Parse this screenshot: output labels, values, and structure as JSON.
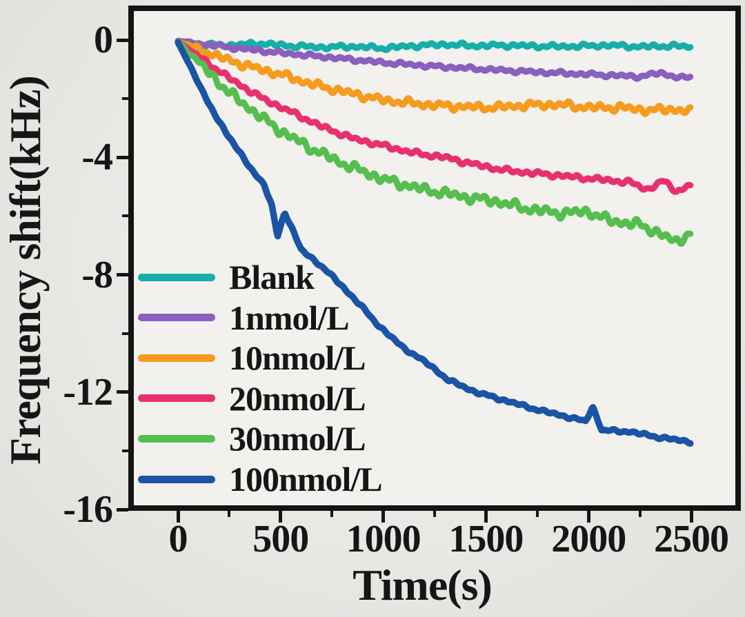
{
  "figure": {
    "background": "#e9e8e5",
    "plot_background": "#f2f1ee",
    "frame_color": "#141414",
    "text_color": "#161616"
  },
  "x_axis": {
    "title": "Time(s)",
    "major_ticks": [
      0,
      500,
      1000,
      1500,
      2000,
      2500
    ],
    "minor_ticks": [
      250,
      750,
      1250,
      1750,
      2250
    ],
    "range": [
      0,
      2500
    ]
  },
  "y_axis": {
    "title": "Frequency shift(kHz)",
    "major_ticks": [
      0,
      -4,
      -8,
      -12,
      -16
    ],
    "minor_ticks": [
      -2,
      -6,
      -10,
      -14
    ],
    "range": [
      -16,
      0
    ]
  },
  "chart_data": {
    "type": "line",
    "title": "",
    "xlabel": "Time(s)",
    "ylabel": "Frequency shift(kHz)",
    "xlim": [
      0,
      2500
    ],
    "ylim": [
      -16,
      0
    ],
    "grid": false,
    "legend_position": "lower-left-inside",
    "x_units": "seconds",
    "y_units": "kHz",
    "series": [
      {
        "name": "Blank",
        "color": "#17AEA9",
        "noise_amp": 0.09,
        "points": [
          [
            0,
            -0.03
          ],
          [
            100,
            -0.15
          ],
          [
            250,
            -0.18
          ],
          [
            400,
            -0.12
          ],
          [
            550,
            -0.2
          ],
          [
            700,
            -0.25
          ],
          [
            850,
            -0.22
          ],
          [
            1000,
            -0.28
          ],
          [
            1150,
            -0.2
          ],
          [
            1300,
            -0.15
          ],
          [
            1450,
            -0.2
          ],
          [
            1600,
            -0.18
          ],
          [
            1750,
            -0.21
          ],
          [
            1900,
            -0.22
          ],
          [
            2100,
            -0.18
          ],
          [
            2250,
            -0.23
          ],
          [
            2400,
            -0.2
          ],
          [
            2500,
            -0.23
          ]
        ]
      },
      {
        "name": "1nmol/L",
        "color": "#8A5FBE",
        "noise_amp": 0.08,
        "points": [
          [
            0,
            -0.03
          ],
          [
            100,
            -0.12
          ],
          [
            250,
            -0.25
          ],
          [
            500,
            -0.44
          ],
          [
            750,
            -0.6
          ],
          [
            1000,
            -0.77
          ],
          [
            1250,
            -0.9
          ],
          [
            1500,
            -1.0
          ],
          [
            1700,
            -1.08
          ],
          [
            1900,
            -1.14
          ],
          [
            2100,
            -1.2
          ],
          [
            2250,
            -1.25
          ],
          [
            2350,
            -1.12
          ],
          [
            2450,
            -1.3
          ],
          [
            2500,
            -1.26
          ]
        ]
      },
      {
        "name": "10nmol/L",
        "color": "#F59B1E",
        "noise_amp": 0.16,
        "points": [
          [
            0,
            -0.05
          ],
          [
            100,
            -0.3
          ],
          [
            250,
            -0.7
          ],
          [
            400,
            -1.0
          ],
          [
            500,
            -1.17
          ],
          [
            650,
            -1.5
          ],
          [
            800,
            -1.75
          ],
          [
            1000,
            -2.05
          ],
          [
            1200,
            -2.2
          ],
          [
            1400,
            -2.28
          ],
          [
            1550,
            -2.3
          ],
          [
            1700,
            -2.22
          ],
          [
            1850,
            -2.2
          ],
          [
            2000,
            -2.3
          ],
          [
            2150,
            -2.3
          ],
          [
            2300,
            -2.4
          ],
          [
            2400,
            -2.35
          ],
          [
            2500,
            -2.45
          ]
        ]
      },
      {
        "name": "20nmol/L",
        "color": "#E7316F",
        "noise_amp": 0.1,
        "points": [
          [
            0,
            -0.05
          ],
          [
            100,
            -0.55
          ],
          [
            250,
            -1.3
          ],
          [
            400,
            -1.95
          ],
          [
            550,
            -2.45
          ],
          [
            700,
            -2.95
          ],
          [
            850,
            -3.35
          ],
          [
            1000,
            -3.6
          ],
          [
            1150,
            -3.85
          ],
          [
            1300,
            -4.0
          ],
          [
            1450,
            -4.25
          ],
          [
            1600,
            -4.45
          ],
          [
            1750,
            -4.55
          ],
          [
            1900,
            -4.65
          ],
          [
            2050,
            -4.75
          ],
          [
            2200,
            -4.85
          ],
          [
            2290,
            -5.1
          ],
          [
            2360,
            -4.8
          ],
          [
            2430,
            -5.15
          ],
          [
            2500,
            -4.95
          ]
        ]
      },
      {
        "name": "30nmol/L",
        "color": "#55BE4F",
        "noise_amp": 0.2,
        "points": [
          [
            0,
            -0.06
          ],
          [
            100,
            -0.75
          ],
          [
            250,
            -1.8
          ],
          [
            400,
            -2.6
          ],
          [
            500,
            -3.1
          ],
          [
            650,
            -3.7
          ],
          [
            800,
            -4.2
          ],
          [
            1000,
            -4.75
          ],
          [
            1200,
            -5.1
          ],
          [
            1400,
            -5.35
          ],
          [
            1550,
            -5.5
          ],
          [
            1700,
            -5.75
          ],
          [
            1850,
            -5.9
          ],
          [
            2000,
            -5.85
          ],
          [
            2100,
            -6.15
          ],
          [
            2250,
            -6.3
          ],
          [
            2350,
            -6.6
          ],
          [
            2420,
            -6.9
          ],
          [
            2500,
            -6.55
          ]
        ]
      },
      {
        "name": "100nmol/L",
        "color": "#1B53A5",
        "noise_amp": 0.06,
        "points": [
          [
            0,
            -0.08
          ],
          [
            75,
            -1.1
          ],
          [
            150,
            -2.2
          ],
          [
            230,
            -3.1
          ],
          [
            320,
            -4.05
          ],
          [
            420,
            -4.95
          ],
          [
            455,
            -5.6
          ],
          [
            485,
            -6.7
          ],
          [
            520,
            -5.85
          ],
          [
            600,
            -7.15
          ],
          [
            690,
            -7.65
          ],
          [
            780,
            -8.25
          ],
          [
            870,
            -8.9
          ],
          [
            980,
            -9.75
          ],
          [
            1090,
            -10.45
          ],
          [
            1210,
            -11.0
          ],
          [
            1320,
            -11.6
          ],
          [
            1450,
            -12.0
          ],
          [
            1600,
            -12.3
          ],
          [
            1750,
            -12.6
          ],
          [
            1900,
            -12.85
          ],
          [
            1985,
            -13.0
          ],
          [
            2020,
            -12.5
          ],
          [
            2065,
            -13.3
          ],
          [
            2200,
            -13.35
          ],
          [
            2350,
            -13.55
          ],
          [
            2500,
            -13.7
          ]
        ]
      }
    ]
  },
  "legend": {
    "items": [
      "Blank",
      "1nmol/L",
      "10nmol/L",
      "20nmol/L",
      "30nmol/L",
      "100nmol/L"
    ]
  }
}
